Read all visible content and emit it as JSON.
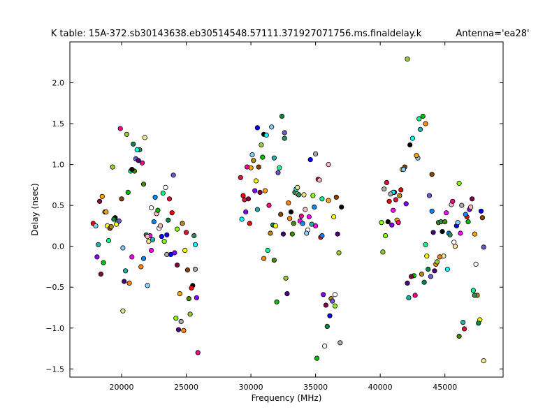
{
  "chart_data": {
    "type": "scatter",
    "title": "K table: 15A-372.sb30143638.eb30514548.57111.371927071756.ms.finaldelay.k",
    "subtitle": "Antenna='ea28'",
    "xlabel": "Frequency (MHz)",
    "ylabel": "Delay (nsec)",
    "xlim": [
      16000,
      49500
    ],
    "ylim": [
      -1.6,
      2.5
    ],
    "xticks": [
      20000,
      25000,
      30000,
      35000,
      40000,
      45000
    ],
    "yticks": [
      -1.5,
      -1.0,
      -0.5,
      0.0,
      0.5,
      1.0,
      1.5,
      2.0
    ],
    "ytick_labels": [
      "−1.5",
      "−1.0",
      "−0.5",
      "0.0",
      "0.5",
      "1.0",
      "1.5",
      "2.0"
    ],
    "grid": false,
    "marker": "circle",
    "marker_edge_color": "#000000",
    "palette": [
      "#ff0000",
      "#00c000",
      "#0000ff",
      "#00ffff",
      "#ff00ff",
      "#ffff00",
      "#ff8800",
      "#8800ff",
      "#00ff88",
      "#88ff00",
      "#ff0088",
      "#0088ff",
      "#884400",
      "#448800",
      "#880044",
      "#008844",
      "#aaaaaa",
      "#87cefa",
      "#ffb6c1",
      "#9acd32",
      "#2e8b57",
      "#ffa500",
      "#6a5acd",
      "#dc143c",
      "#20b2aa",
      "#ffffff",
      "#000000",
      "#f0e68c",
      "#b8860b",
      "#4b0082"
    ],
    "series": [
      {
        "x": [
          17800,
          18100,
          18300,
          18500,
          18700,
          18900,
          19100,
          19300,
          19500,
          19700,
          19900,
          20100,
          20300,
          20500,
          20700,
          20900,
          21100,
          21300,
          21500,
          21700,
          21900,
          22100,
          22300,
          22500,
          22700,
          22900,
          23100,
          23300,
          23500,
          23700,
          23900,
          24100,
          24300,
          24500,
          24700,
          24900,
          25100,
          25300,
          25500,
          25700,
          25900,
          18000,
          18200,
          18600,
          19000,
          19400,
          19800,
          20200,
          20600,
          21000,
          21400,
          21800,
          22200,
          22600,
          23000,
          23400,
          23800,
          24200,
          24600,
          25000,
          25400,
          25800,
          18400,
          18800,
          19200,
          19600,
          20000,
          20400,
          20800,
          21200,
          21600,
          22000,
          22400,
          22800,
          23200,
          23600,
          24000,
          24400,
          24800,
          25200,
          25600,
          20100,
          20800,
          21700,
          22000,
          22300,
          23500,
          24300,
          25700
        ],
        "y": [
          0.28,
          -0.13,
          0.55,
          0.61,
          0.42,
          0.25,
          0.22,
          0.97,
          0.35,
          0.3,
          1.44,
          -0.02,
          -0.3,
          0.66,
          0.92,
          1.25,
          1.07,
          1.05,
          -0.25,
          0.76,
          0.14,
          0.06,
          -0.05,
          0.3,
          0.4,
          0.22,
          0.12,
          0.06,
          -0.1,
          0.58,
          0.41,
          -0.08,
          -0.23,
          -0.58,
          0.28,
          -0.05,
          -0.29,
          -0.83,
          -0.48,
          0.02,
          -1.3,
          0.25,
          0.02,
          -0.2,
          0.07,
          0.33,
          0.31,
          -0.43,
          -0.45,
          0.92,
          1.18,
          1.33,
          0.13,
          0.6,
          0.25,
          0.72,
          -0.1,
          -0.88,
          -0.92,
          0.17,
          -0.51,
          -0.63,
          -0.34,
          0.42,
          0.24,
          0.27,
          0.58,
          1.37,
          0.94,
          1.18,
          1.02,
          -0.48,
          0.08,
          0.44,
          0.65,
          0.32,
          0.87,
          -1.02,
          -1.03,
          -0.64,
          0.13,
          -0.79,
          -0.13,
          -0.15,
          0.12,
          0.47,
          0.14,
          0.21,
          -0.28
        ]
      },
      {
        "x": [
          29200,
          29400,
          29600,
          29800,
          30000,
          30200,
          30400,
          30600,
          30800,
          31000,
          31200,
          31400,
          31600,
          31800,
          32000,
          32200,
          32400,
          32600,
          32800,
          33000,
          33200,
          33400,
          33600,
          33800,
          34000,
          34200,
          34400,
          34600,
          34800,
          35000,
          35200,
          35400,
          35600,
          35800,
          36000,
          36200,
          36400,
          36600,
          36800,
          37000,
          29300,
          29700,
          30100,
          30500,
          30900,
          31300,
          31700,
          32100,
          32500,
          32900,
          33300,
          33700,
          34100,
          34500,
          34900,
          35300,
          35700,
          36100,
          36500,
          36900,
          29500,
          29900,
          30300,
          30700,
          31100,
          31500,
          31900,
          32300,
          32700,
          33100,
          33500,
          33900,
          34300,
          34700,
          35100,
          35500,
          35900,
          36300,
          36700,
          31000,
          31800,
          32600,
          33600,
          35000,
          35500,
          36000,
          36500,
          30500
        ],
        "y": [
          0.84,
          0.62,
          0.42,
          0.58,
          0.96,
          1.05,
          0.8,
          0.97,
          1.24,
          1.37,
          1.36,
          0.5,
          1.46,
          1.08,
          -0.68,
          0.96,
          1.59,
          1.39,
          -0.58,
          0.34,
          0.15,
          0.66,
          0.64,
          0.31,
          0.28,
          0.45,
          0.2,
          1.06,
          0.62,
          1.13,
          0.82,
          0.11,
          -0.59,
          -0.72,
          0.56,
          -0.64,
          0.36,
          0.6,
          -0.08,
          0.48,
          0.33,
          0.97,
          1.12,
          0.45,
          1.09,
          -0.05,
          0.26,
          0.9,
          0.15,
          0.53,
          0.28,
          0.63,
          0.63,
          0.36,
          0.48,
          0.81,
          -1.22,
          -0.85,
          -0.73,
          -1.18,
          0.57,
          0.28,
          0.68,
          0.66,
          0.68,
          0.16,
          0.25,
          0.39,
          -0.39,
          0.42,
          0.7,
          0.37,
          0.16,
          0.27,
          -1.37,
          0.58,
          -0.98,
          -0.67,
          0.15,
          -0.15,
          -0.17,
          1.32,
          0.72,
          0.25,
          0.13,
          1.0,
          -0.59,
          1.45
        ]
      },
      {
        "x": [
          40100,
          40300,
          40500,
          40700,
          40900,
          41100,
          41300,
          41500,
          41700,
          41900,
          42100,
          42300,
          42500,
          42700,
          42900,
          43100,
          43300,
          43500,
          43700,
          43900,
          44100,
          44300,
          44500,
          44700,
          44900,
          45100,
          45300,
          45500,
          45700,
          45900,
          46100,
          46300,
          46500,
          46700,
          46900,
          47100,
          47300,
          47500,
          47700,
          47900,
          40200,
          40600,
          41000,
          41400,
          41800,
          42200,
          42600,
          43000,
          43400,
          43800,
          44200,
          44600,
          45000,
          45400,
          45800,
          46200,
          46600,
          47000,
          47400,
          47800,
          40400,
          40800,
          41200,
          41600,
          42000,
          42400,
          42800,
          43200,
          43600,
          44000,
          44400,
          44800,
          45200,
          45600,
          46000,
          46400,
          46800,
          47200,
          47600,
          48000,
          42100,
          43500,
          46100,
          47300,
          48000,
          41000,
          44000
        ],
        "y": [
          0.29,
          0.7,
          0.78,
          0.55,
          0.26,
          0.66,
          0.32,
          0.62,
          0.94,
          0.97,
          2.29,
          1.24,
          1.32,
          -0.6,
          1.08,
          1.43,
          1.59,
          0.02,
          -0.28,
          -0.37,
          0.17,
          -0.22,
          0.29,
          0.3,
          -0.12,
          0.41,
          0.16,
          0.51,
          0.05,
          0.25,
          0.77,
          0.5,
          -1.01,
          0.36,
          0.45,
          0.58,
          0.15,
          -0.6,
          -0.9,
          0.35,
          -0.07,
          0.3,
          0.66,
          0.29,
          0.94,
          -0.63,
          -0.36,
          1.56,
          -0.44,
          0.62,
          -0.3,
          -0.13,
          0.3,
          0.14,
          0.0,
          0.16,
          0.39,
          0.48,
          -0.22,
          0.43,
          0.13,
          0.64,
          0.57,
          0.69,
          0.52,
          -0.37,
          1.11,
          -0.34,
          -0.12,
          0.88,
          -0.19,
          0.18,
          -0.28,
          0.55,
          0.29,
          -0.93,
          0.3,
          -0.54,
          -0.94,
          -0.01,
          -0.45,
          1.5,
          -1.1,
          -0.6,
          -1.4,
          0.44,
          0.43
        ]
      }
    ]
  }
}
